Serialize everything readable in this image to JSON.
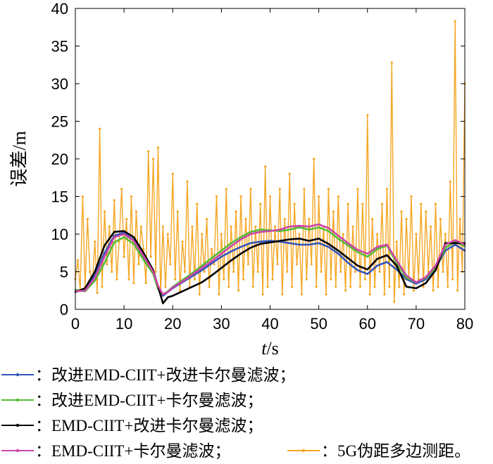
{
  "chart_data": {
    "type": "line",
    "xlabel_var": "t",
    "xlabel_unit": "/s",
    "ylabel": "误差/m",
    "xlim": [
      0,
      80
    ],
    "ylim": [
      0,
      40
    ],
    "xticks": [
      0,
      10,
      20,
      30,
      40,
      50,
      60,
      70,
      80
    ],
    "yticks": [
      0,
      5,
      10,
      15,
      20,
      25,
      30,
      35,
      40
    ],
    "grid": false,
    "legend_position": "bottom",
    "series": [
      {
        "name": "：改进EMD-CIIT+改进卡尔曼滤波；",
        "color": "#3355bb",
        "x": [
          0,
          2,
          4,
          6,
          8,
          10,
          12,
          14,
          16,
          17,
          18,
          19,
          20,
          22,
          24,
          26,
          28,
          30,
          32,
          34,
          36,
          38,
          40,
          42,
          44,
          46,
          48,
          50,
          52,
          54,
          56,
          58,
          60,
          62,
          64,
          66,
          68,
          70,
          72,
          74,
          76,
          78,
          80
        ],
        "y": [
          2.4,
          2.6,
          4.5,
          7.5,
          9.8,
          10.2,
          9.2,
          7.0,
          4.8,
          2.8,
          1.8,
          2.3,
          2.8,
          3.6,
          4.4,
          5.2,
          6.1,
          7.0,
          7.7,
          8.3,
          8.8,
          9.0,
          9.1,
          9.0,
          8.8,
          8.6,
          8.6,
          8.8,
          8.3,
          7.4,
          6.2,
          5.2,
          4.7,
          5.8,
          6.3,
          5.3,
          4.0,
          3.4,
          4.0,
          5.5,
          7.8,
          8.6,
          7.8
        ]
      },
      {
        "name": "：改进EMD-CIIT+卡尔曼滤波；",
        "color": "#55bb33",
        "x": [
          0,
          2,
          4,
          6,
          8,
          10,
          12,
          14,
          16,
          17,
          18,
          19,
          20,
          22,
          24,
          26,
          28,
          30,
          32,
          34,
          36,
          38,
          40,
          42,
          44,
          46,
          48,
          50,
          52,
          54,
          56,
          58,
          60,
          62,
          64,
          66,
          68,
          70,
          72,
          74,
          76,
          78,
          80
        ],
        "y": [
          2.6,
          2.4,
          3.8,
          6.2,
          8.9,
          9.6,
          8.7,
          6.6,
          4.7,
          2.7,
          2.0,
          2.4,
          3.0,
          3.9,
          4.8,
          5.8,
          6.8,
          7.8,
          8.8,
          9.6,
          10.3,
          10.6,
          10.5,
          10.4,
          10.6,
          10.9,
          10.6,
          10.9,
          10.4,
          9.4,
          8.5,
          7.6,
          7.0,
          8.0,
          8.5,
          6.2,
          4.2,
          3.6,
          4.2,
          5.5,
          8.2,
          9.0,
          8.4
        ]
      },
      {
        "name": "：EMD-CIIT+改进卡尔曼滤波；",
        "color": "#000000",
        "x": [
          0,
          2,
          4,
          6,
          8,
          10,
          12,
          14,
          16,
          17,
          18,
          19,
          20,
          22,
          24,
          26,
          28,
          30,
          32,
          34,
          36,
          38,
          40,
          42,
          44,
          46,
          48,
          50,
          52,
          54,
          56,
          58,
          60,
          62,
          64,
          66,
          68,
          70,
          72,
          74,
          76,
          78,
          80
        ],
        "y": [
          2.3,
          2.8,
          5.0,
          8.5,
          10.3,
          10.4,
          9.6,
          7.5,
          5.2,
          3.0,
          0.8,
          1.6,
          1.8,
          2.4,
          3.0,
          3.6,
          4.5,
          5.5,
          6.5,
          7.4,
          8.2,
          8.7,
          8.9,
          9.1,
          9.3,
          9.4,
          9.1,
          9.4,
          8.7,
          7.8,
          6.8,
          5.8,
          5.3,
          6.7,
          7.2,
          5.8,
          3.0,
          2.8,
          3.5,
          5.2,
          8.8,
          8.8,
          8.8
        ]
      },
      {
        "name": "：EMD-CIIT+卡尔曼滤波；",
        "color": "#cc44aa",
        "x": [
          0,
          2,
          4,
          6,
          8,
          10,
          12,
          14,
          16,
          17,
          18,
          19,
          20,
          22,
          24,
          26,
          28,
          30,
          32,
          34,
          36,
          38,
          40,
          42,
          44,
          46,
          48,
          50,
          52,
          54,
          56,
          58,
          60,
          62,
          64,
          66,
          68,
          70,
          72,
          74,
          76,
          78,
          80
        ],
        "y": [
          2.4,
          2.5,
          4.2,
          7.0,
          9.6,
          10.0,
          9.1,
          7.1,
          5.0,
          3.1,
          2.0,
          2.3,
          2.9,
          3.7,
          4.6,
          5.5,
          6.4,
          7.4,
          8.4,
          9.3,
          10.0,
          10.3,
          10.4,
          10.6,
          11.0,
          11.1,
          11.0,
          11.3,
          10.8,
          9.8,
          8.8,
          7.9,
          7.4,
          8.3,
          8.6,
          6.5,
          4.5,
          3.6,
          4.3,
          5.8,
          8.6,
          9.2,
          8.6
        ]
      },
      {
        "name": "：5G伪距多边测距。",
        "color": "#f5a623",
        "x": [
          0,
          0.5,
          1,
          1.5,
          2,
          2.5,
          3,
          3.5,
          4,
          4.5,
          5,
          5.5,
          6,
          6.5,
          7,
          7.5,
          8,
          8.5,
          9,
          9.5,
          10,
          10.5,
          11,
          11.5,
          12,
          12.5,
          13,
          13.5,
          14,
          14.5,
          15,
          15.5,
          16,
          16.5,
          17,
          17.5,
          18,
          18.5,
          19,
          19.5,
          20,
          20.5,
          21,
          21.5,
          22,
          22.5,
          23,
          23.5,
          24,
          24.5,
          25,
          25.5,
          26,
          26.5,
          27,
          27.5,
          28,
          28.5,
          29,
          29.5,
          30,
          30.5,
          31,
          31.5,
          32,
          32.5,
          33,
          33.5,
          34,
          34.5,
          35,
          35.5,
          36,
          36.5,
          37,
          37.5,
          38,
          38.5,
          39,
          39.5,
          40,
          40.5,
          41,
          41.5,
          42,
          42.5,
          43,
          43.5,
          44,
          44.5,
          45,
          45.5,
          46,
          46.5,
          47,
          47.5,
          48,
          48.5,
          49,
          49.5,
          50,
          50.5,
          51,
          51.5,
          52,
          52.5,
          53,
          53.5,
          54,
          54.5,
          55,
          55.5,
          56,
          56.5,
          57,
          57.5,
          58,
          58.5,
          59,
          59.5,
          60,
          60.5,
          61,
          61.5,
          62,
          62.5,
          63,
          63.5,
          64,
          64.5,
          65,
          65.5,
          66,
          66.5,
          67,
          67.5,
          68,
          68.5,
          69,
          69.5,
          70,
          70.5,
          71,
          71.5,
          72,
          72.5,
          73,
          73.5,
          74,
          74.5,
          75,
          75.5,
          76,
          76.5,
          77,
          77.5,
          78,
          78.5,
          79,
          79.5,
          80
        ],
        "y": [
          4.0,
          6.5,
          2.5,
          15.0,
          3.0,
          12.0,
          5.0,
          3.5,
          9.0,
          2.2,
          24.0,
          3.0,
          13.0,
          6.0,
          11.0,
          5.0,
          14.5,
          4.0,
          9.0,
          16.0,
          7.0,
          12.0,
          4.0,
          15.0,
          3.5,
          13.0,
          6.0,
          11.0,
          8.0,
          3.5,
          21.0,
          7.0,
          20.0,
          5.0,
          21.5,
          2.0,
          11.0,
          3.0,
          10.0,
          6.0,
          18.0,
          4.0,
          13.0,
          2.5,
          9.0,
          5.0,
          17.0,
          3.0,
          11.0,
          4.0,
          14.0,
          2.0,
          10.0,
          5.0,
          12.0,
          3.0,
          8.0,
          6.0,
          15.0,
          2.0,
          10.0,
          4.0,
          16.0,
          3.0,
          11.0,
          5.0,
          13.0,
          2.5,
          15.0,
          4.0,
          12.0,
          6.0,
          16.0,
          3.0,
          11.0,
          5.0,
          14.0,
          2.0,
          19.0,
          3.0,
          15.0,
          4.0,
          11.0,
          6.0,
          16.0,
          2.0,
          12.0,
          5.0,
          18.0,
          3.0,
          14.0,
          6.0,
          10.0,
          2.0,
          16.0,
          4.0,
          12.0,
          6.0,
          20.0,
          3.0,
          15.0,
          5.0,
          11.0,
          2.0,
          16.0,
          4.0,
          13.0,
          3.0,
          15.0,
          5.0,
          10.0,
          2.5,
          14.0,
          3.0,
          11.0,
          5.0,
          16.0,
          3.0,
          14.0,
          4.0,
          25.8,
          2.0,
          12.0,
          3.0,
          10.0,
          5.0,
          14.0,
          2.0,
          16.0,
          3.0,
          32.8,
          1.0,
          9.0,
          3.0,
          13.0,
          2.0,
          12.0,
          4.0,
          15.0,
          2.5,
          10.0,
          4.0,
          14.0,
          3.0,
          13.0,
          5.0,
          11.0,
          2.5,
          14.0,
          3.0,
          12.0,
          5.0,
          10.0,
          3.0,
          17.0,
          4.0,
          38.3,
          2.5,
          12.0,
          5.0,
          30.0
        ]
      }
    ]
  }
}
